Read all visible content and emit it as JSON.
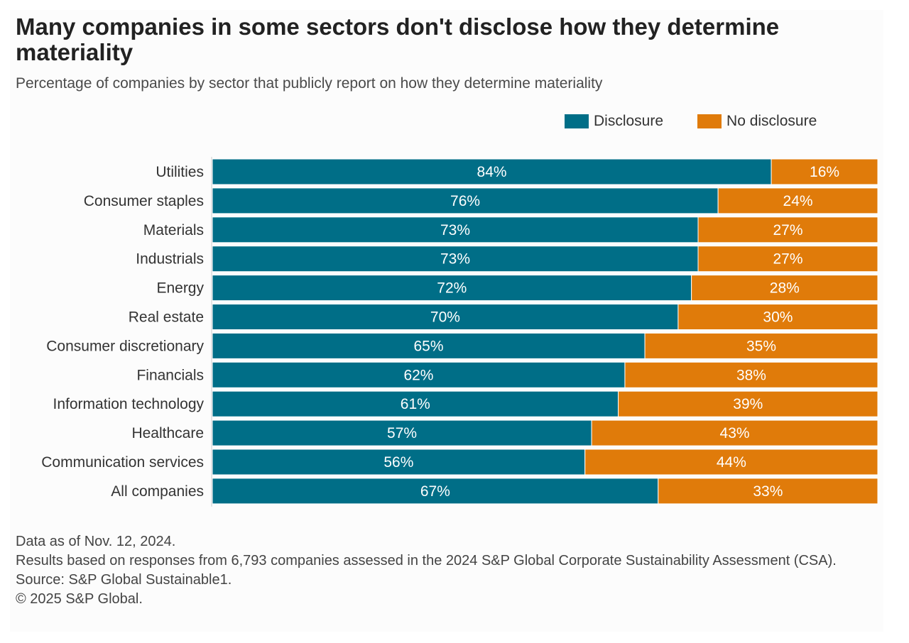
{
  "title": "Many companies in some sectors don't disclose how they determine materiality",
  "subtitle": "Percentage of companies by sector that publicly report on how they determine materiality",
  "colors": {
    "disclosure": "#006e87",
    "no_disclosure": "#e07b0a",
    "label_text": "#ffffff"
  },
  "chart_data": {
    "type": "bar",
    "orientation": "horizontal",
    "stacked": true,
    "legend_position": "top-right",
    "grid": false,
    "xlim": [
      0,
      100
    ],
    "categories": [
      "Utilities",
      "Consumer staples",
      "Materials",
      "Industrials",
      "Energy",
      "Real estate",
      "Consumer discretionary",
      "Financials",
      "Information technology",
      "Healthcare",
      "Communication services",
      "All companies"
    ],
    "series": [
      {
        "name": "Disclosure",
        "values": [
          84,
          76,
          73,
          73,
          72,
          70,
          65,
          62,
          61,
          57,
          56,
          67
        ],
        "labels": [
          "84%",
          "76%",
          "73%",
          "73%",
          "72%",
          "70%",
          "65%",
          "62%",
          "61%",
          "57%",
          "56%",
          "67%"
        ]
      },
      {
        "name": "No disclosure",
        "values": [
          16,
          24,
          27,
          27,
          28,
          30,
          35,
          38,
          39,
          43,
          44,
          33
        ],
        "labels": [
          "16%",
          "24%",
          "27%",
          "27%",
          "28%",
          "30%",
          "35%",
          "38%",
          "39%",
          "43%",
          "44%",
          "33%"
        ]
      }
    ]
  },
  "notes": [
    "Data as of Nov. 12, 2024.",
    "Results based on responses from 6,793 companies assessed in the 2024 S&P Global Corporate Sustainability Assessment (CSA).",
    "Source: S&P Global Sustainable1.",
    "© 2025 S&P Global."
  ]
}
